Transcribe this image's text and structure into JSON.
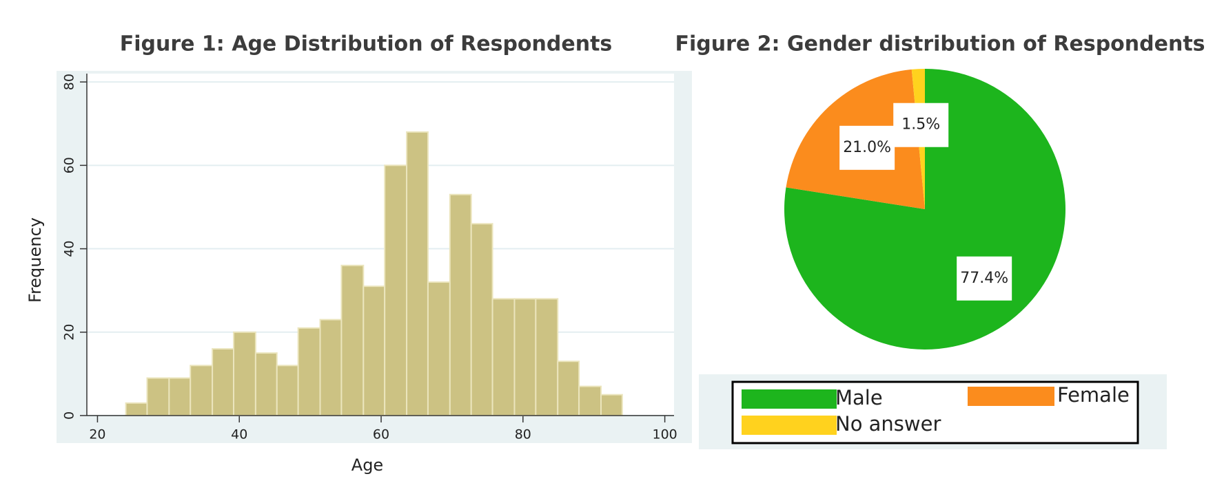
{
  "chart_data": [
    {
      "type": "histogram",
      "title": "Figure 1: Age Distribution of Respondents",
      "x_label": "Age",
      "y_label": "Frequency",
      "bins": [
        24,
        27,
        30.1,
        33.1,
        36.2,
        39.2,
        42.3,
        45.3,
        48.3,
        51.4,
        54.4,
        57.5,
        60.5,
        63.6,
        66.6,
        69.7,
        72.7,
        75.7,
        78.8,
        81.8,
        84.9,
        87.9,
        91,
        94
      ],
      "values": [
        3,
        9,
        9,
        12,
        16,
        20,
        15,
        12,
        21,
        23,
        36,
        31,
        60,
        68,
        32,
        53,
        46,
        28,
        28,
        28,
        13,
        7,
        5
      ],
      "color": "#ccc283",
      "xlim": [
        18.5,
        101.3
      ],
      "xticks": [
        20,
        40,
        60,
        80,
        100
      ],
      "ylim": [
        0,
        82
      ],
      "yticks": [
        0,
        20,
        40,
        60,
        80
      ],
      "grid": true
    },
    {
      "type": "pie",
      "title": "Figure 2: Gender distribution of Respondents",
      "categories": [
        "Male",
        "Female",
        "No answer"
      ],
      "values": [
        77.4,
        21.0,
        1.5
      ],
      "value_labels": [
        "77.4%",
        "21.0%",
        "1.5%"
      ],
      "colors": [
        "#1db51d",
        "#fb8c1d",
        "#ffd21e"
      ],
      "legend": "bottom"
    }
  ]
}
